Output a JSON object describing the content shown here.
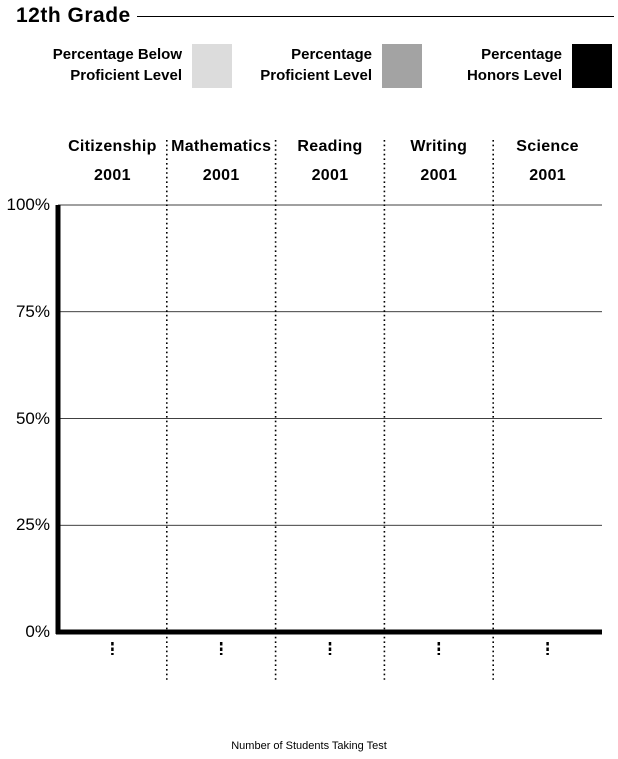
{
  "header": {
    "title": "12th  Grade"
  },
  "legend": [
    {
      "line1": "Percentage Below",
      "line2": "Proficient Level",
      "color": "#dcdcdc",
      "icon": "light-gray-swatch"
    },
    {
      "line1": "Percentage",
      "line2": "Proficient Level",
      "color": "#a3a3a3",
      "icon": "medium-gray-swatch"
    },
    {
      "line1": "Percentage",
      "line2": "Honors Level",
      "color": "#000000",
      "icon": "black-swatch"
    }
  ],
  "chart_data": {
    "type": "bar",
    "stacked": true,
    "categories": [
      "Citizenship",
      "Mathematics",
      "Reading",
      "Writing",
      "Science"
    ],
    "category_years": [
      "2001",
      "2001",
      "2001",
      "2001",
      "2001"
    ],
    "series": [
      {
        "name": "Percentage Below Proficient Level",
        "values": [
          0,
          0,
          0,
          0,
          0
        ]
      },
      {
        "name": "Percentage Proficient Level",
        "values": [
          0,
          0,
          0,
          0,
          0
        ]
      },
      {
        "name": "Percentage Honors Level",
        "values": [
          0,
          0,
          0,
          0,
          0
        ]
      }
    ],
    "student_counts": [
      "-",
      "-",
      "-",
      "-",
      "-"
    ],
    "yticks": [
      "100%",
      "75%",
      "50%",
      "25%",
      "0%"
    ],
    "ylim": [
      0,
      100
    ],
    "grid": true,
    "legend_position": "top",
    "xlabel": "Number of Students Taking Test"
  }
}
